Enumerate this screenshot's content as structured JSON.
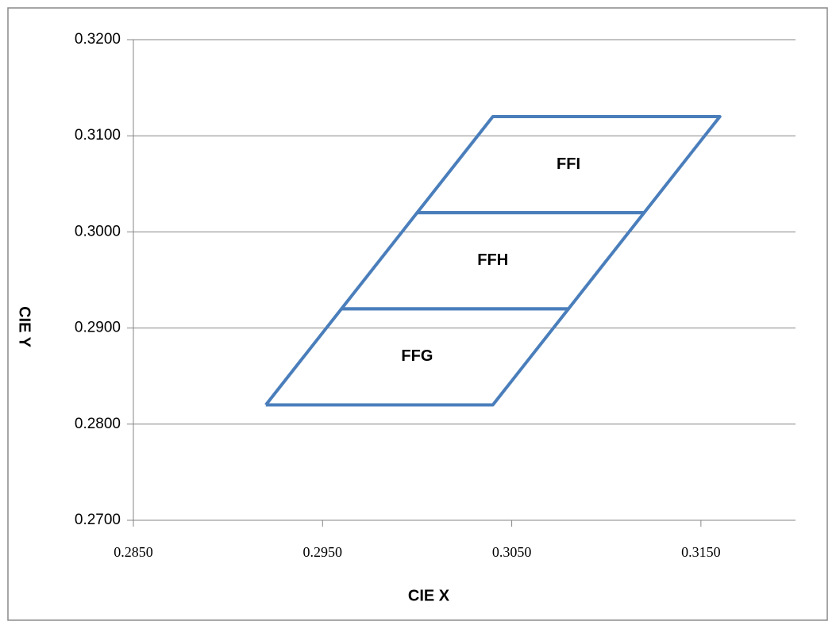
{
  "chart_data": {
    "type": "line",
    "xlabel": "CIE X",
    "ylabel": "CIE Y",
    "xlim": [
      0.285,
      0.32
    ],
    "ylim": [
      0.27,
      0.32
    ],
    "xticks": [
      {
        "value": 0.285,
        "label": "0.2850"
      },
      {
        "value": 0.295,
        "label": "0.2950"
      },
      {
        "value": 0.305,
        "label": "0.3050"
      },
      {
        "value": 0.315,
        "label": "0.3150"
      }
    ],
    "yticks": [
      {
        "value": 0.27,
        "label": "0.2700"
      },
      {
        "value": 0.28,
        "label": "0.2800"
      },
      {
        "value": 0.29,
        "label": "0.2900"
      },
      {
        "value": 0.3,
        "label": "0.3000"
      },
      {
        "value": 0.31,
        "label": "0.3100"
      },
      {
        "value": 0.32,
        "label": "0.3200"
      }
    ],
    "grid": true,
    "series": [
      {
        "name": "FFG",
        "color": "#4a7ebb",
        "x": [
          0.292,
          0.304,
          0.308,
          0.296,
          0.292
        ],
        "values": [
          0.282,
          0.282,
          0.292,
          0.292,
          0.282
        ]
      },
      {
        "name": "FFH",
        "color": "#4a7ebb",
        "x": [
          0.296,
          0.308,
          0.312,
          0.3,
          0.296
        ],
        "values": [
          0.292,
          0.292,
          0.302,
          0.302,
          0.292
        ]
      },
      {
        "name": "FFI",
        "color": "#4a7ebb",
        "x": [
          0.3,
          0.312,
          0.316,
          0.304,
          0.3
        ],
        "values": [
          0.302,
          0.302,
          0.312,
          0.312,
          0.302
        ]
      }
    ]
  }
}
